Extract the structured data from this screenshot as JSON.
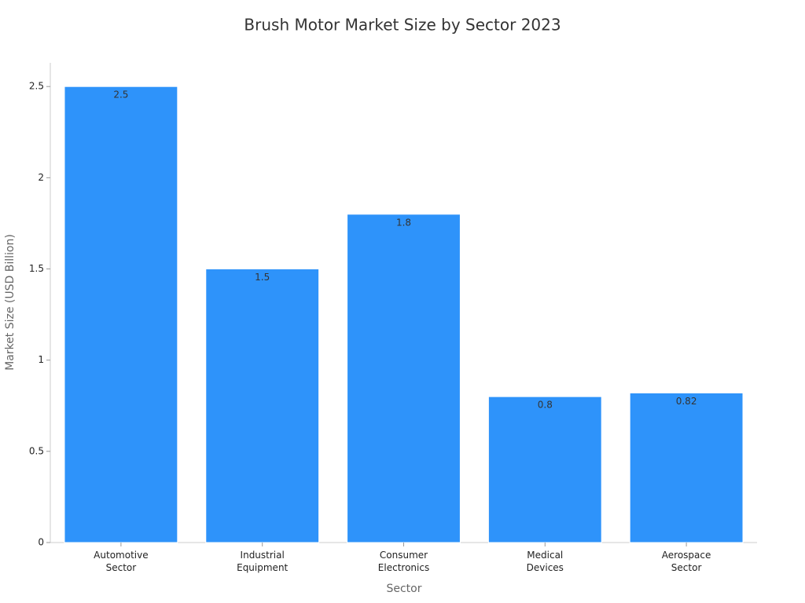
{
  "chart_data": {
    "type": "bar",
    "title": "Brush Motor Market Size by Sector 2023",
    "x_label": "Sector",
    "y_label": "Market Size (USD Billion)",
    "categories": [
      "Automotive Sector",
      "Industrial Equipment",
      "Consumer Electronics",
      "Medical Devices",
      "Aerospace Sector"
    ],
    "values": [
      2.5,
      1.5,
      1.8,
      0.8,
      0.82
    ],
    "color": "#2e93fa",
    "ylim": [
      0,
      2.63
    ],
    "yticks": [
      0,
      0.5,
      1,
      1.5,
      2,
      2.5
    ],
    "grid": false
  }
}
